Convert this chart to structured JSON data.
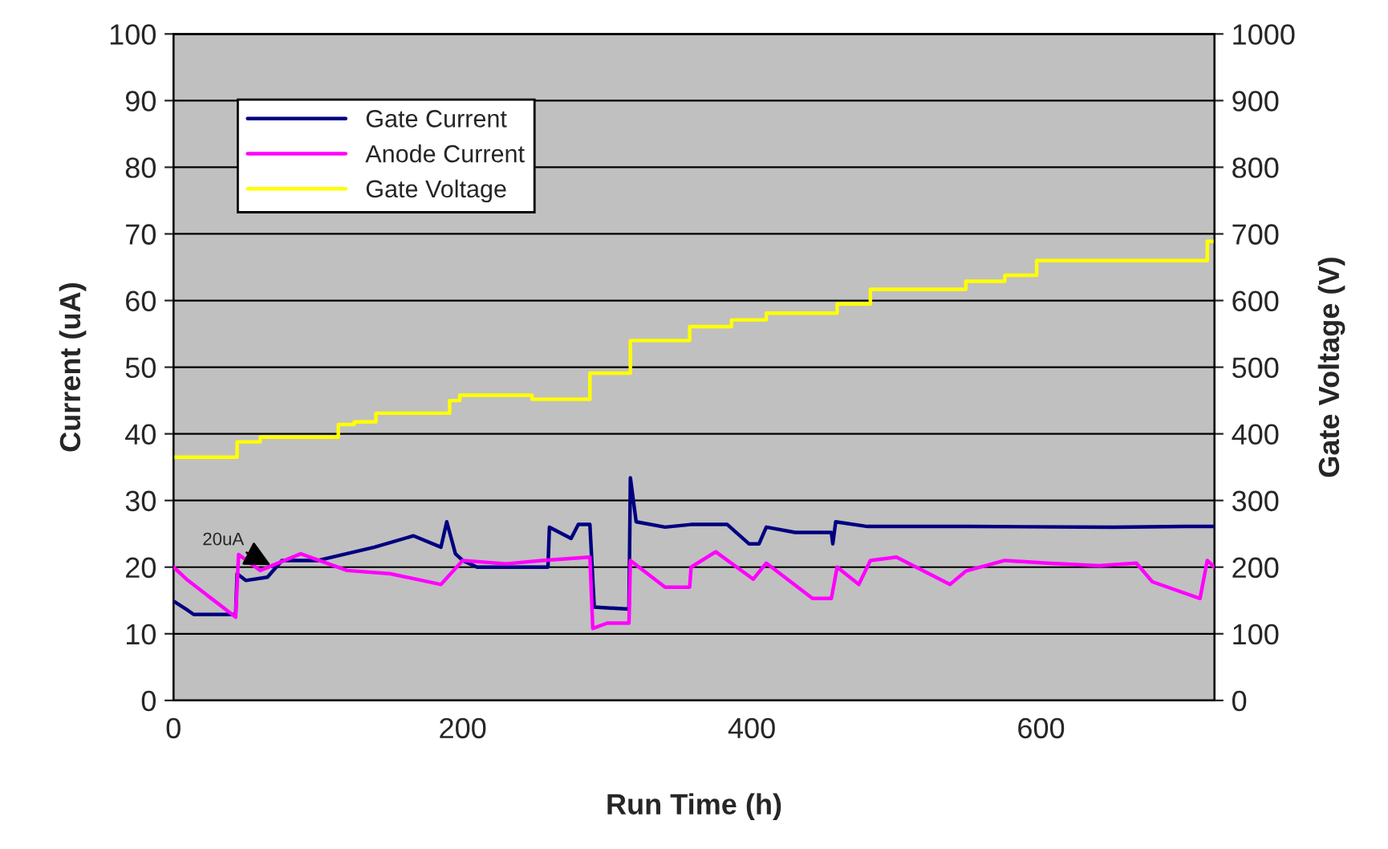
{
  "chart_data": {
    "type": "line",
    "xlabel": "Run Time (h)",
    "ylabel": "Current (uA)",
    "y2label": "Gate Voltage (V)",
    "xlim": [
      0,
      720
    ],
    "xticks": [
      0,
      200,
      400,
      600
    ],
    "ylim": [
      0,
      100
    ],
    "yticks": [
      0,
      10,
      20,
      30,
      40,
      50,
      60,
      70,
      80,
      90,
      100
    ],
    "y2lim": [
      0,
      1000
    ],
    "y2ticks": [
      0,
      100,
      200,
      300,
      400,
      500,
      600,
      700,
      800,
      900,
      1000
    ],
    "grid": "y",
    "legend": "top left",
    "annotations": [
      {
        "text": "20uA",
        "x": 70,
        "y": 20
      }
    ],
    "series": [
      {
        "name": "Gate Current",
        "color": "#000080",
        "x": [
          0,
          10,
          14,
          40,
          43,
          44,
          50,
          65,
          75,
          100,
          139,
          166,
          185,
          189,
          195,
          200,
          210,
          245,
          259,
          260,
          275,
          280,
          288,
          291,
          315,
          316,
          320,
          340,
          358,
          383,
          398,
          405,
          410,
          430,
          455,
          456,
          458,
          480,
          550,
          650,
          700,
          720
        ],
        "values": [
          14.9,
          13.5,
          12.9,
          12.9,
          13,
          19,
          18,
          18.5,
          21,
          21,
          23,
          24.7,
          23,
          26.8,
          22,
          21,
          20,
          20,
          20,
          26,
          24.3,
          26.4,
          26.4,
          14,
          13.7,
          33.4,
          26.8,
          26,
          26.4,
          26.4,
          23.5,
          23.5,
          26,
          25.2,
          25.2,
          23.5,
          26.8,
          26.1,
          26.1,
          26,
          26.1,
          26.1
        ]
      },
      {
        "name": "Anode Current",
        "color": "#ff00ff",
        "x": [
          0,
          10,
          25,
          43,
          45,
          60,
          88,
          120,
          150,
          185,
          200,
          230,
          255,
          288,
          290,
          300,
          315,
          316,
          340,
          346,
          357,
          358,
          375,
          401,
          410,
          442,
          455,
          459,
          474,
          482,
          500,
          537,
          548,
          575,
          604,
          640,
          666,
          677,
          710,
          715,
          720
        ],
        "values": [
          20,
          18,
          15.5,
          12.5,
          21.9,
          19.5,
          22,
          19.5,
          19,
          17.4,
          21,
          20.5,
          21,
          21.5,
          10.8,
          11.6,
          11.6,
          21,
          17,
          17,
          17,
          20,
          22.3,
          18.2,
          20.6,
          15.3,
          15.3,
          20,
          17.4,
          21,
          21.5,
          17.4,
          19.4,
          21,
          20.6,
          20.2,
          20.6,
          17.8,
          15.3,
          21,
          20
        ]
      },
      {
        "name": "Gate Voltage",
        "color": "#ffff00",
        "type": "step",
        "axis": "y2",
        "x": [
          0,
          44,
          60,
          114,
          125,
          140,
          191,
          198,
          248,
          288,
          316,
          357,
          386,
          410,
          459,
          482,
          548,
          575,
          597,
          715,
          720
        ],
        "values": [
          365,
          388,
          395,
          414,
          418,
          431,
          450,
          458,
          452,
          491,
          540,
          561,
          571,
          581,
          595,
          617,
          629,
          638,
          660,
          689,
          689
        ]
      }
    ]
  }
}
